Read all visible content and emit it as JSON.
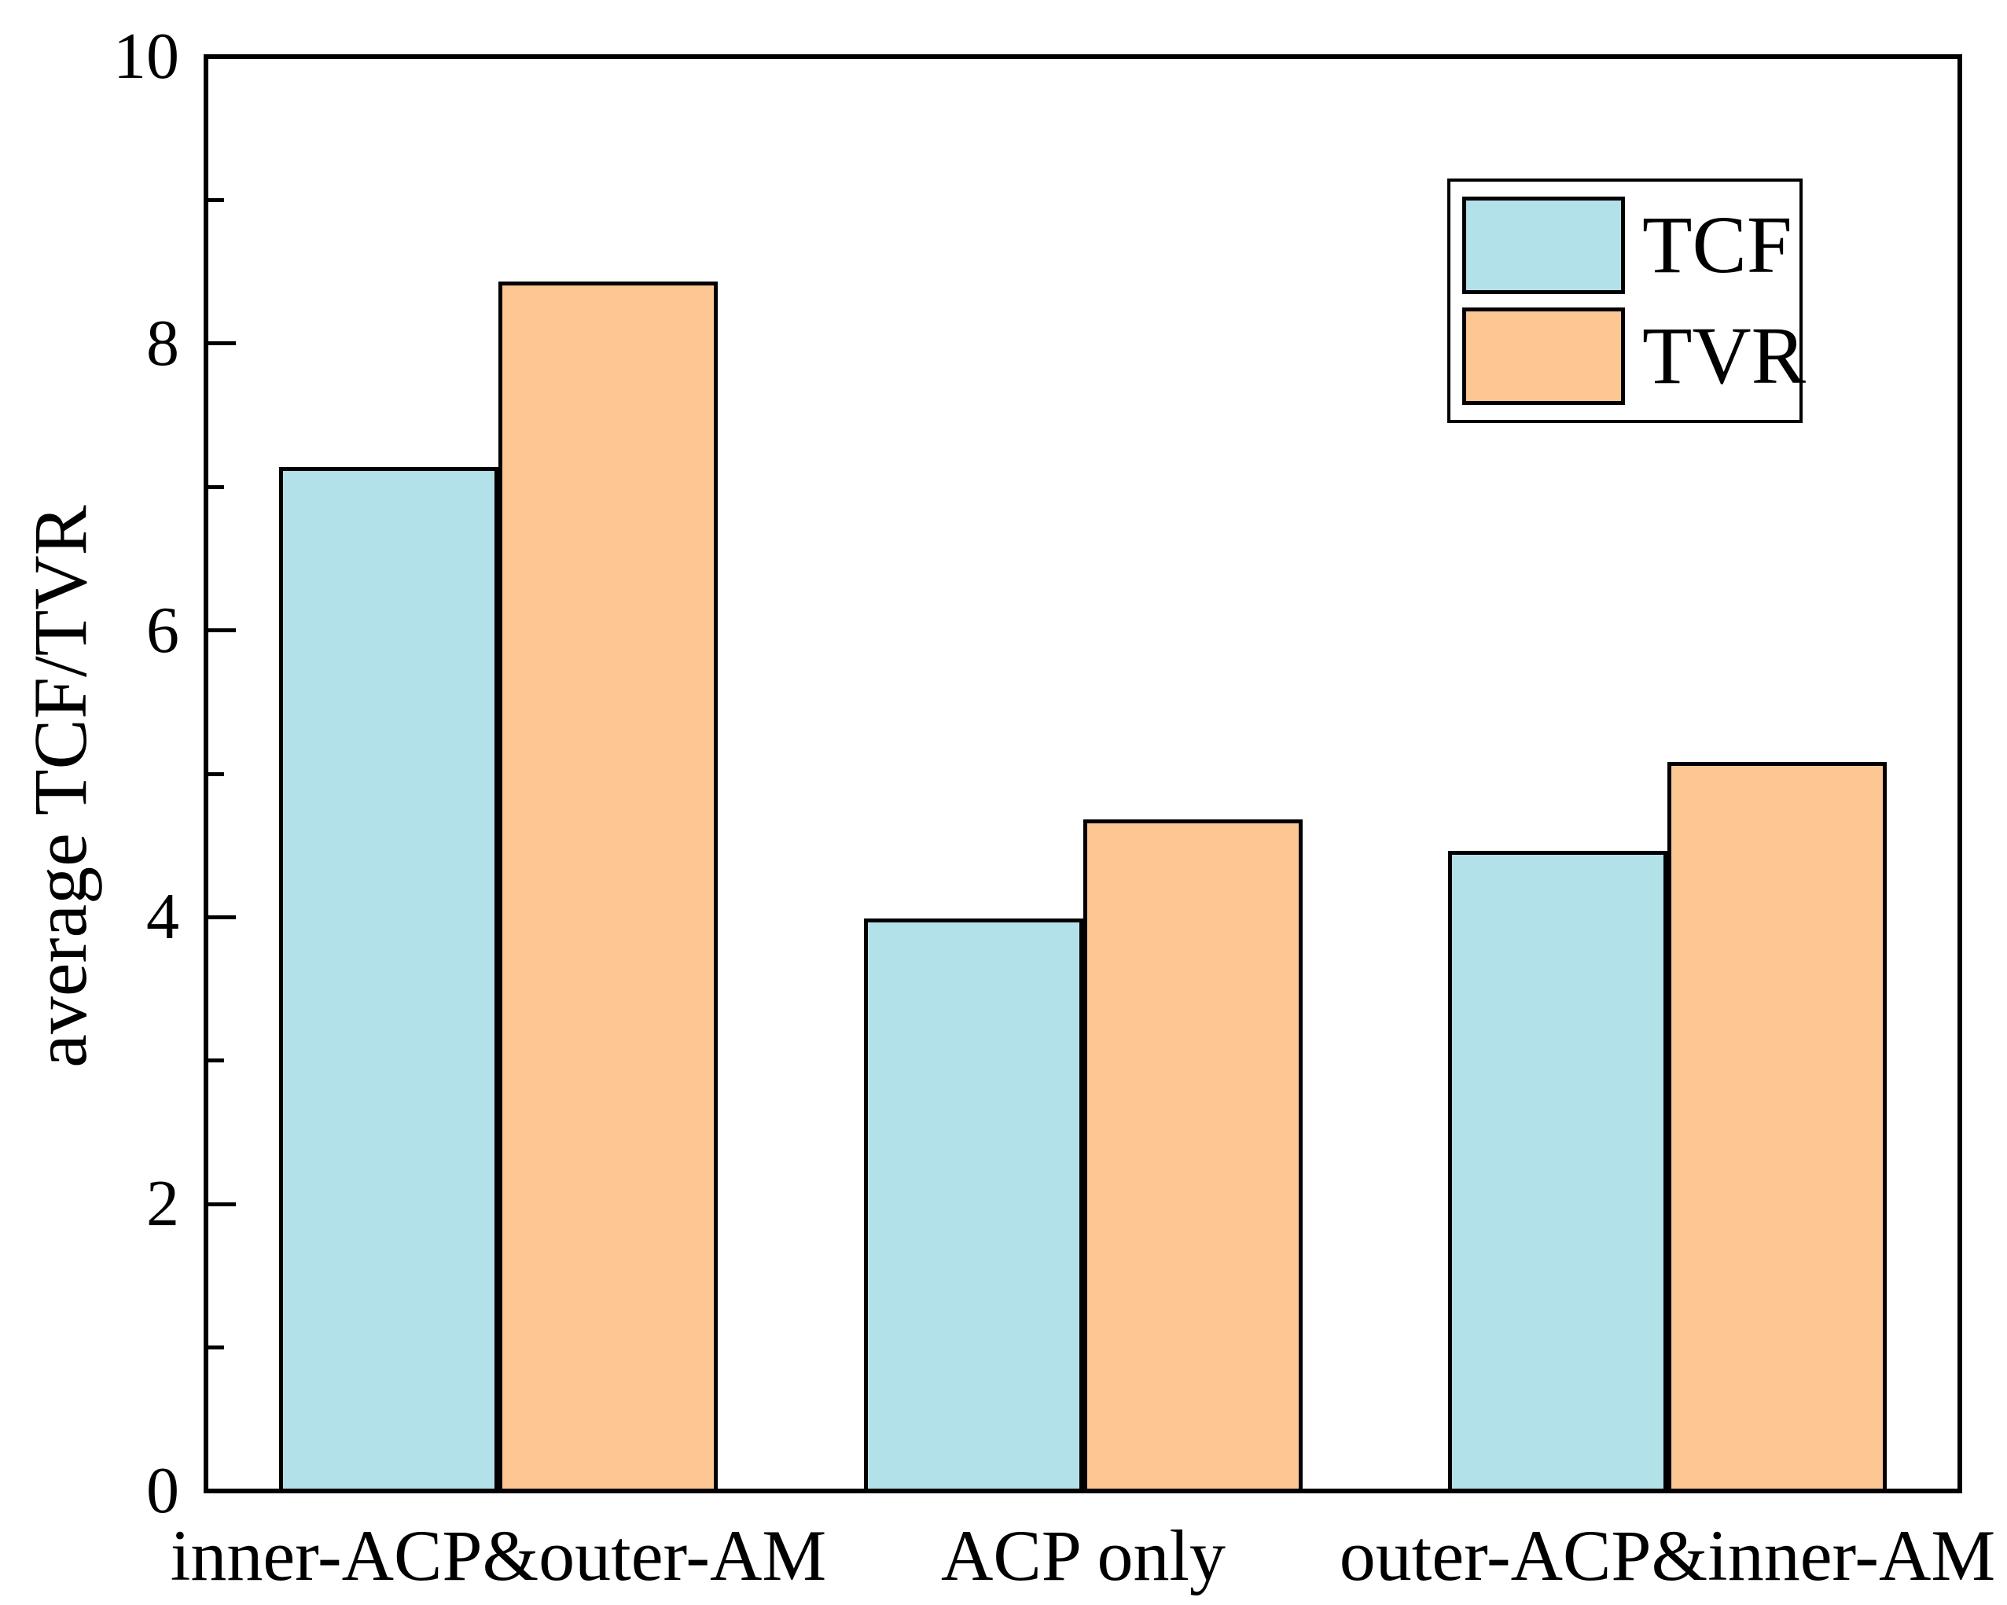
{
  "figure": {
    "background_color": "#ffffff",
    "text_color": "#000000"
  },
  "chart_data": {
    "type": "bar",
    "title": "",
    "xlabel": "",
    "ylabel": "average TCF/TVR",
    "categories": [
      "inner-ACP&outer-AM",
      "ACP only",
      "outer-ACP&inner-AM"
    ],
    "series": [
      {
        "name": "TCF",
        "color": "#B3E1EA",
        "values": [
          7.14,
          3.99,
          4.46
        ]
      },
      {
        "name": "TVR",
        "color": "#FDC794",
        "values": [
          8.43,
          4.68,
          5.08
        ]
      }
    ],
    "bar_edge_color": "#000000",
    "ylim": [
      0,
      10
    ],
    "yticks": [
      "0",
      "2",
      "4",
      "6",
      "8",
      "10"
    ],
    "ytick_values": [
      0,
      2,
      4,
      6,
      8,
      10
    ],
    "minor_tick_values": [
      1,
      3,
      5,
      7,
      9
    ],
    "grid": false,
    "legend_position": "top-right",
    "legend_entries": [
      "TCF",
      "TVR"
    ]
  }
}
